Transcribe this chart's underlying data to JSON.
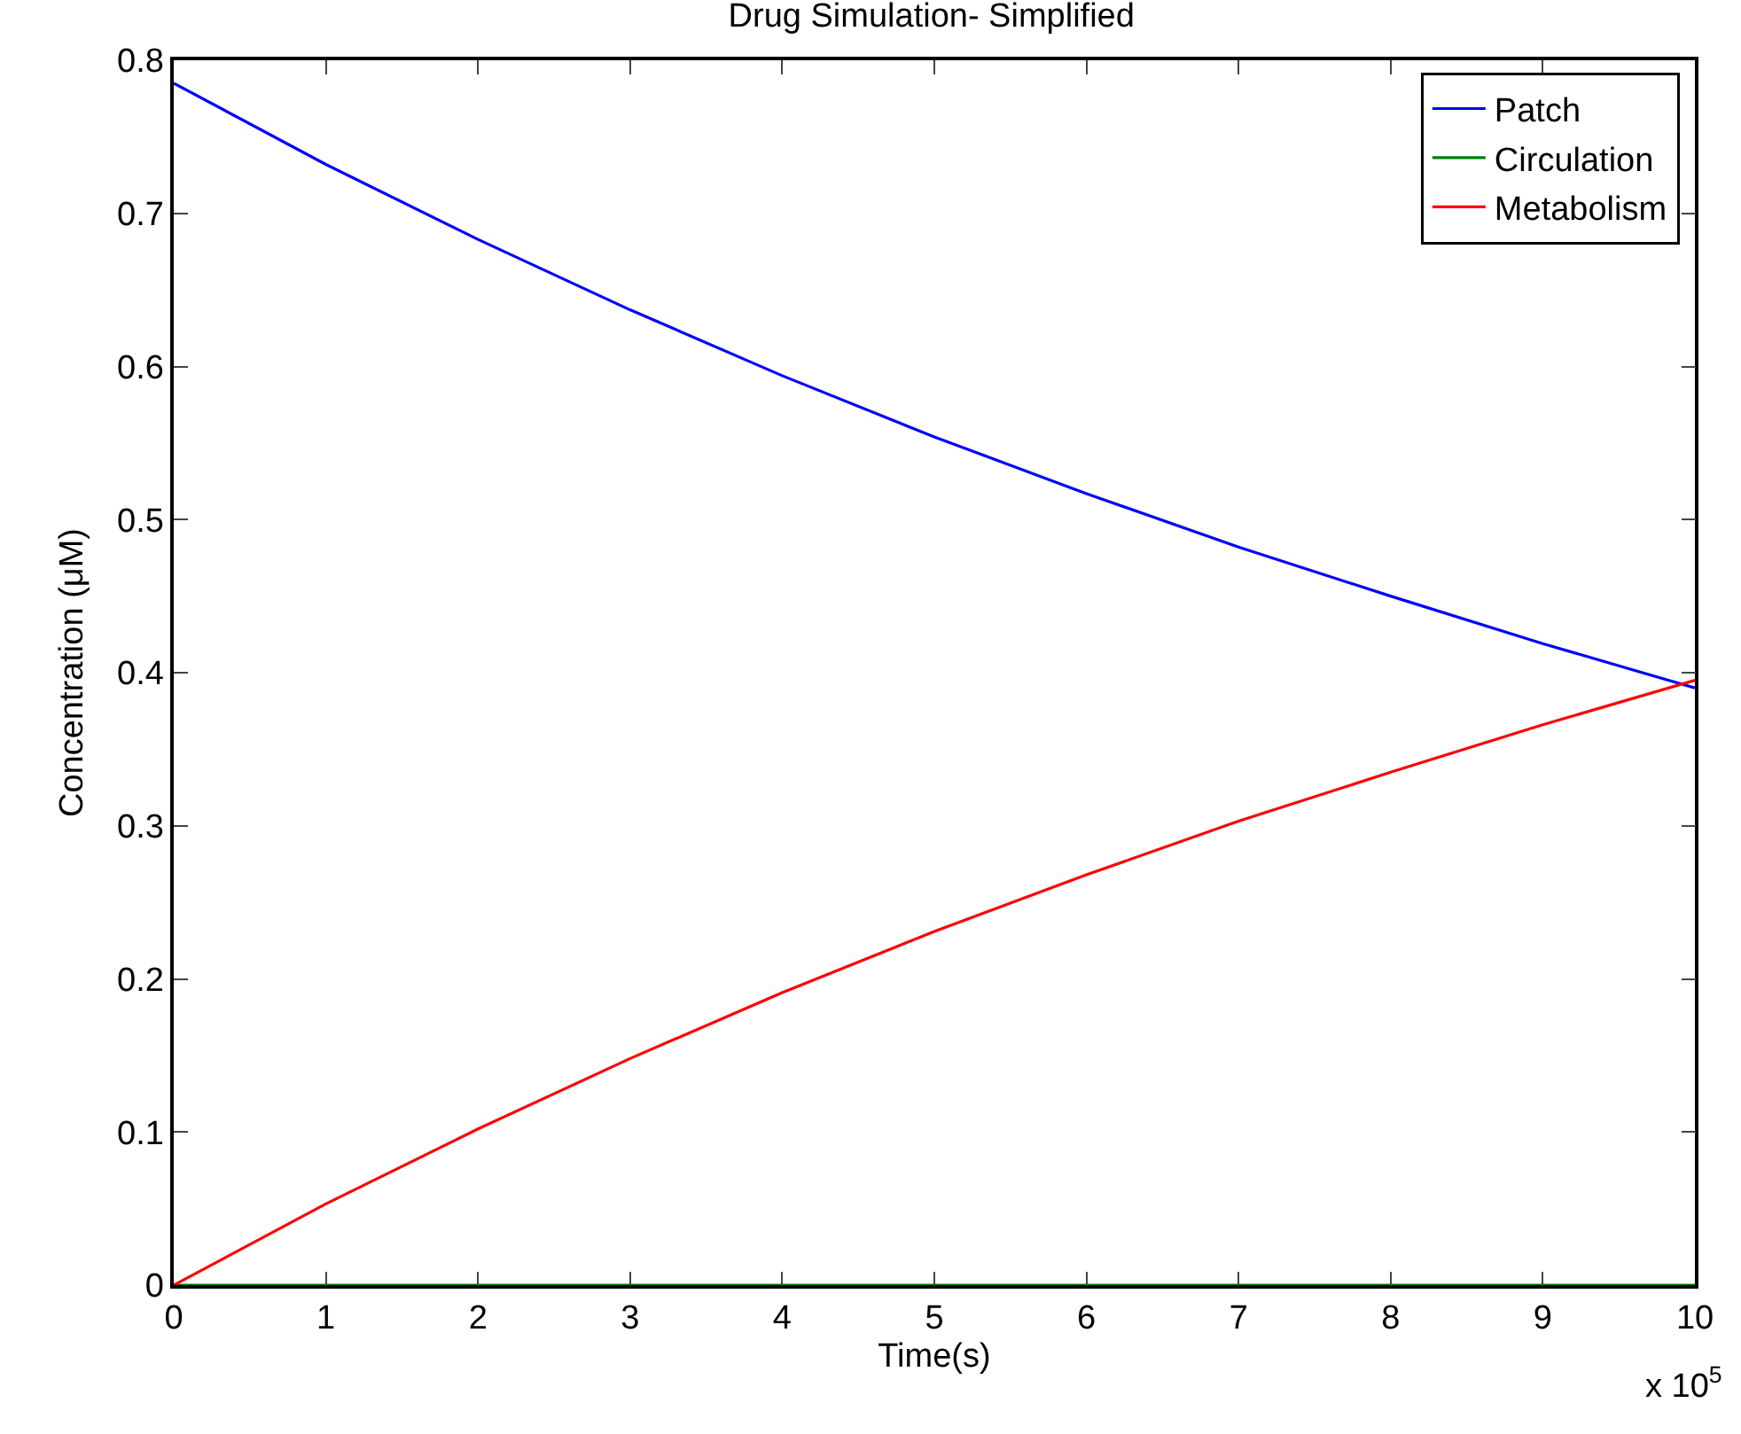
{
  "chart_data": {
    "type": "line",
    "title": "Drug Simulation- Simplified",
    "xlabel": "Time(s)",
    "ylabel": "Concentration (μM)",
    "x": [
      0,
      1,
      2,
      3,
      4,
      5,
      6,
      7,
      8,
      9,
      10
    ],
    "series": [
      {
        "name": "Patch",
        "color": "#0000ff",
        "values": [
          0.785,
          0.732,
          0.683,
          0.637,
          0.594,
          0.554,
          0.517,
          0.482,
          0.45,
          0.419,
          0.39
        ]
      },
      {
        "name": "Circulation",
        "color": "#008000",
        "values": [
          0,
          0,
          0,
          0,
          0,
          0,
          0,
          0,
          0,
          0,
          0
        ]
      },
      {
        "name": "Metabolism",
        "color": "#ff0000",
        "values": [
          0,
          0.053,
          0.102,
          0.148,
          0.191,
          0.231,
          0.268,
          0.303,
          0.335,
          0.366,
          0.395
        ]
      }
    ],
    "xlim": [
      0,
      10
    ],
    "xticks": [
      0,
      1,
      2,
      3,
      4,
      5,
      6,
      7,
      8,
      9,
      10
    ],
    "ylim": [
      0,
      0.8
    ],
    "yticks": [
      0,
      0.1,
      0.2,
      0.3,
      0.4,
      0.5,
      0.6,
      0.7,
      0.8
    ],
    "annotations": [
      "x 10$^{5}$"
    ],
    "grid": false,
    "legend": "top right",
    "marker": "none",
    "line_style": "solid"
  }
}
